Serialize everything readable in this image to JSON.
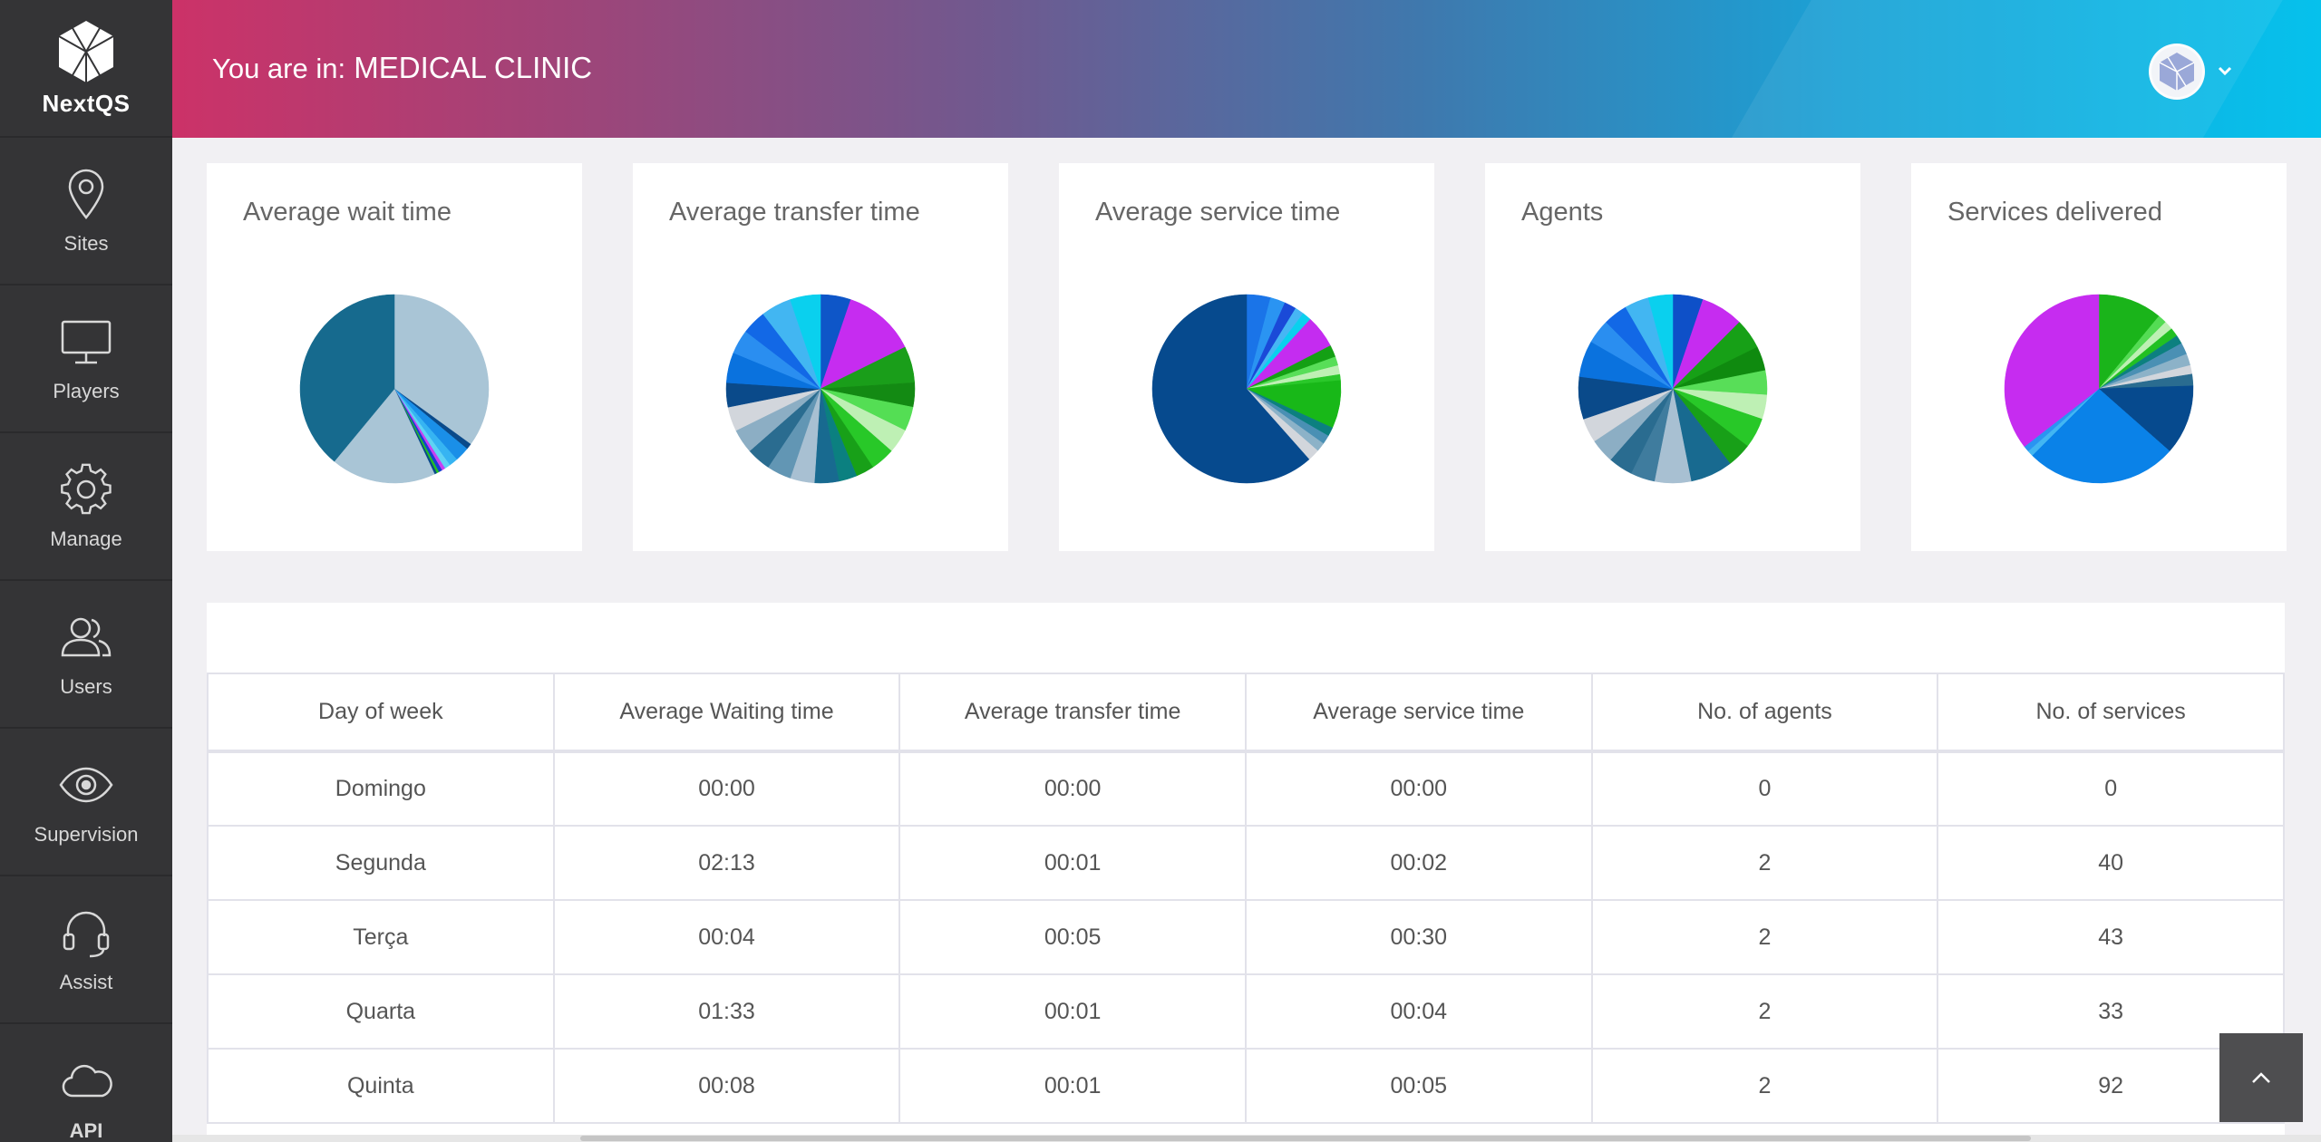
{
  "app": {
    "logo_text": "NextQS"
  },
  "sidebar": {
    "items": [
      {
        "label": "Sites",
        "icon": "map-pin-icon"
      },
      {
        "label": "Players",
        "icon": "monitor-icon"
      },
      {
        "label": "Manage",
        "icon": "gear-icon"
      },
      {
        "label": "Users",
        "icon": "users-icon"
      },
      {
        "label": "Supervision",
        "icon": "eye-icon"
      },
      {
        "label": "Assist",
        "icon": "headset-icon"
      },
      {
        "label": "API",
        "icon": "cloud-icon"
      }
    ]
  },
  "header": {
    "prefix": "You are in:",
    "location": "MEDICAL CLINIC"
  },
  "cards": [
    {
      "title": "Average wait time",
      "pie": [
        {
          "value": 35,
          "color": "#a9c5d6"
        },
        {
          "value": 1,
          "color": "#0a4a8a"
        },
        {
          "value": 2.5,
          "color": "#1a8fe8"
        },
        {
          "value": 1.5,
          "color": "#36b4f2"
        },
        {
          "value": 1,
          "color": "#5fd2f4"
        },
        {
          "value": 0.6,
          "color": "#c640f2"
        },
        {
          "value": 0.6,
          "color": "#1540d0"
        },
        {
          "value": 0.4,
          "color": "#22c022"
        },
        {
          "value": 0.4,
          "color": "#0a4a8a"
        },
        {
          "value": 18,
          "color": "#a9c5d6"
        },
        {
          "value": 39,
          "color": "#166a8e"
        }
      ]
    },
    {
      "title": "Average transfer time",
      "pie": [
        {
          "value": 5,
          "color": "#0e56c8"
        },
        {
          "value": 12,
          "color": "#c62cf0"
        },
        {
          "value": 6,
          "color": "#1a9e1a"
        },
        {
          "value": 4,
          "color": "#138a13"
        },
        {
          "value": 4,
          "color": "#54de54"
        },
        {
          "value": 4,
          "color": "#bef0b4"
        },
        {
          "value": 4,
          "color": "#28c828"
        },
        {
          "value": 3,
          "color": "#18a018"
        },
        {
          "value": 3,
          "color": "#0b8080"
        },
        {
          "value": 4,
          "color": "#186a90"
        },
        {
          "value": 4,
          "color": "#a8c0d2"
        },
        {
          "value": 4,
          "color": "#6296b4"
        },
        {
          "value": 4,
          "color": "#2a6c90"
        },
        {
          "value": 4,
          "color": "#8caec4"
        },
        {
          "value": 4,
          "color": "#d2d6dc"
        },
        {
          "value": 4,
          "color": "#0a4a8a"
        },
        {
          "value": 5,
          "color": "#0a72de"
        },
        {
          "value": 4,
          "color": "#2a8ef0"
        },
        {
          "value": 4,
          "color": "#1268e6"
        },
        {
          "value": 5,
          "color": "#42b6f2"
        },
        {
          "value": 5,
          "color": "#0ad0ee"
        }
      ]
    },
    {
      "title": "Average service time",
      "pie": [
        {
          "value": 4,
          "color": "#1a74e8"
        },
        {
          "value": 2.5,
          "color": "#2a94f2"
        },
        {
          "value": 2,
          "color": "#1a4ad8"
        },
        {
          "value": 1.5,
          "color": "#46b6f4"
        },
        {
          "value": 1.5,
          "color": "#0ad0ee"
        },
        {
          "value": 5.5,
          "color": "#c42cf0"
        },
        {
          "value": 2,
          "color": "#14a014"
        },
        {
          "value": 1.5,
          "color": "#58de58"
        },
        {
          "value": 1.5,
          "color": "#bef0b4"
        },
        {
          "value": 1,
          "color": "#2ac82a"
        },
        {
          "value": 8,
          "color": "#18b818"
        },
        {
          "value": 1.5,
          "color": "#0c8080"
        },
        {
          "value": 1.5,
          "color": "#4a90b4"
        },
        {
          "value": 1.5,
          "color": "#8cb2c8"
        },
        {
          "value": 2,
          "color": "#d2d6dc"
        },
        {
          "value": 60,
          "color": "#064a8e"
        }
      ]
    },
    {
      "title": "Agents",
      "pie": [
        {
          "value": 5,
          "color": "#0e50c8"
        },
        {
          "value": 7,
          "color": "#c62cf0"
        },
        {
          "value": 5,
          "color": "#17a017"
        },
        {
          "value": 4,
          "color": "#0f8a0f"
        },
        {
          "value": 4,
          "color": "#58de58"
        },
        {
          "value": 4,
          "color": "#bef0b4"
        },
        {
          "value": 5,
          "color": "#28c828"
        },
        {
          "value": 4,
          "color": "#18a018"
        },
        {
          "value": 7,
          "color": "#186a90"
        },
        {
          "value": 6,
          "color": "#a8c0d2"
        },
        {
          "value": 4,
          "color": "#3f7c9e"
        },
        {
          "value": 4,
          "color": "#2a6c90"
        },
        {
          "value": 4,
          "color": "#8caec4"
        },
        {
          "value": 4,
          "color": "#d2d6dc"
        },
        {
          "value": 7,
          "color": "#0a4a8a"
        },
        {
          "value": 6,
          "color": "#0a72de"
        },
        {
          "value": 4,
          "color": "#2a8ef0"
        },
        {
          "value": 4,
          "color": "#1268e6"
        },
        {
          "value": 4,
          "color": "#42b6f2"
        },
        {
          "value": 4,
          "color": "#0ad0ee"
        }
      ]
    },
    {
      "title": "Services delivered",
      "pie": [
        {
          "value": 11,
          "color": "#1ab41a"
        },
        {
          "value": 1.5,
          "color": "#54dc54"
        },
        {
          "value": 1.5,
          "color": "#bef0b4"
        },
        {
          "value": 1.5,
          "color": "#22c022"
        },
        {
          "value": 1.5,
          "color": "#0c8080"
        },
        {
          "value": 2,
          "color": "#4a90b4"
        },
        {
          "value": 2,
          "color": "#8cb2c8"
        },
        {
          "value": 1.5,
          "color": "#d2d6dc"
        },
        {
          "value": 2,
          "color": "#2a6c90"
        },
        {
          "value": 12,
          "color": "#064a8e"
        },
        {
          "value": 26,
          "color": "#0a82e8"
        },
        {
          "value": 1,
          "color": "#42b6f2"
        },
        {
          "value": 1,
          "color": "#2a94f2"
        },
        {
          "value": 35.5,
          "color": "#c62cf0"
        }
      ]
    }
  ],
  "table": {
    "headers": [
      "Day of week",
      "Average Waiting time",
      "Average transfer time",
      "Average service time",
      "No. of agents",
      "No. of services"
    ],
    "rows": [
      [
        "Domingo",
        "00:00",
        "00:00",
        "00:00",
        "0",
        "0"
      ],
      [
        "Segunda",
        "02:13",
        "00:01",
        "00:02",
        "2",
        "40"
      ],
      [
        "Terça",
        "00:04",
        "00:05",
        "00:30",
        "2",
        "43"
      ],
      [
        "Quarta",
        "01:33",
        "00:01",
        "00:04",
        "2",
        "33"
      ],
      [
        "Quinta",
        "00:08",
        "00:01",
        "00:05",
        "2",
        "92"
      ]
    ]
  },
  "colors": {
    "sidebar_bg": "#343436",
    "header_gradient_start": "#cc3268",
    "header_gradient_end": "#06c1ec"
  }
}
